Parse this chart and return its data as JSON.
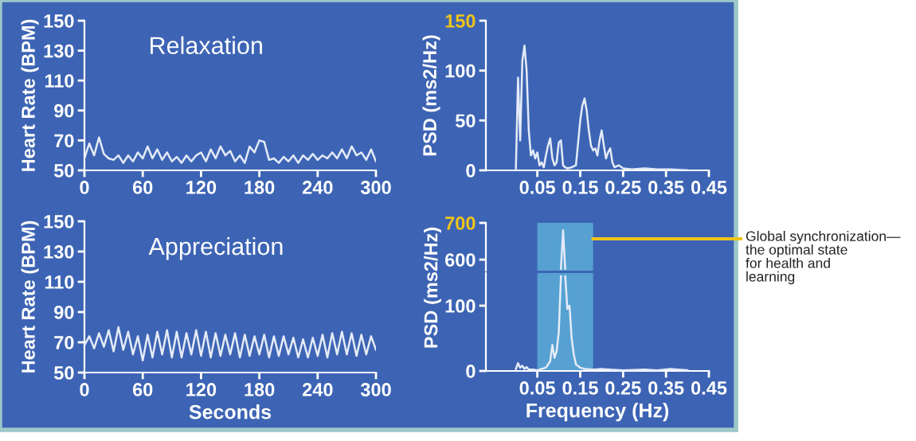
{
  "chart_data": [
    {
      "type": "line",
      "title": "Relaxation",
      "ylabel": "Heart Rate (BPM)",
      "xlim": [
        0,
        300
      ],
      "xticks": [
        0,
        60,
        120,
        180,
        240,
        300
      ],
      "ylim": [
        50,
        150
      ],
      "yticks": [
        50,
        70,
        90,
        110,
        130,
        150
      ],
      "grid": false,
      "legend": false,
      "series": [
        {
          "color": "#e4ebf7",
          "x": [
            0,
            5,
            10,
            15,
            20,
            25,
            30,
            35,
            40,
            45,
            50,
            55,
            60,
            65,
            70,
            75,
            80,
            85,
            90,
            95,
            100,
            105,
            110,
            115,
            120,
            125,
            130,
            135,
            140,
            145,
            150,
            155,
            160,
            165,
            170,
            175,
            180,
            185,
            190,
            195,
            200,
            205,
            210,
            215,
            220,
            225,
            230,
            235,
            240,
            245,
            250,
            255,
            260,
            265,
            270,
            275,
            280,
            285,
            290,
            295,
            300
          ],
          "values": [
            58,
            68,
            60,
            72,
            61,
            58,
            57,
            60,
            55,
            60,
            56,
            62,
            58,
            66,
            58,
            64,
            57,
            62,
            56,
            59,
            55,
            60,
            56,
            60,
            62,
            56,
            64,
            58,
            66,
            60,
            63,
            56,
            60,
            55,
            66,
            62,
            70,
            69,
            57,
            58,
            55,
            59,
            56,
            60,
            55,
            60,
            57,
            61,
            57,
            60,
            58,
            62,
            58,
            64,
            58,
            66,
            60,
            62,
            57,
            64,
            56
          ]
        }
      ]
    },
    {
      "type": "line",
      "title": "Appreciation",
      "ylabel": "Heart Rate (BPM)",
      "xlabel": "Seconds",
      "xlim": [
        0,
        300
      ],
      "xticks": [
        0,
        60,
        120,
        180,
        240,
        300
      ],
      "ylim": [
        50,
        150
      ],
      "yticks": [
        50,
        70,
        90,
        110,
        130,
        150
      ],
      "grid": false,
      "legend": false,
      "series": [
        {
          "color": "#e4ebf7",
          "x": [
            0,
            5,
            10,
            15,
            20,
            25,
            30,
            35,
            40,
            45,
            50,
            55,
            60,
            65,
            70,
            75,
            80,
            85,
            90,
            95,
            100,
            105,
            110,
            115,
            120,
            125,
            130,
            135,
            140,
            145,
            150,
            155,
            160,
            165,
            170,
            175,
            180,
            185,
            190,
            195,
            200,
            205,
            210,
            215,
            220,
            225,
            230,
            235,
            240,
            245,
            250,
            255,
            260,
            265,
            270,
            275,
            280,
            285,
            290,
            295,
            300
          ],
          "values": [
            68,
            74,
            66,
            76,
            67,
            78,
            64,
            80,
            65,
            77,
            62,
            74,
            58,
            75,
            60,
            77,
            62,
            78,
            60,
            77,
            60,
            76,
            62,
            78,
            61,
            77,
            60,
            76,
            61,
            75,
            62,
            76,
            60,
            75,
            61,
            74,
            62,
            75,
            60,
            74,
            61,
            74,
            62,
            73,
            60,
            72,
            60,
            73,
            61,
            75,
            60,
            76,
            62,
            77,
            62,
            76,
            61,
            75,
            62,
            74,
            65
          ]
        }
      ]
    },
    {
      "type": "line",
      "ylabel": "PSD (ms2/Hz)",
      "xlim": [
        -0.07,
        0.45
      ],
      "xticks": [
        0.05,
        0.15,
        0.25,
        0.35,
        0.45
      ],
      "ylim": [
        0,
        150
      ],
      "yticks": [
        0,
        50,
        100,
        150
      ],
      "grid": false,
      "legend": false,
      "series": [
        {
          "color": "#e4ebf7",
          "x": [
            0,
            0.005,
            0.01,
            0.015,
            0.02,
            0.025,
            0.03,
            0.035,
            0.04,
            0.045,
            0.05,
            0.055,
            0.06,
            0.065,
            0.07,
            0.075,
            0.08,
            0.085,
            0.09,
            0.095,
            0.1,
            0.105,
            0.11,
            0.115,
            0.12,
            0.13,
            0.14,
            0.15,
            0.155,
            0.16,
            0.165,
            0.17,
            0.175,
            0.18,
            0.185,
            0.19,
            0.195,
            0.2,
            0.205,
            0.21,
            0.215,
            0.22,
            0.225,
            0.23,
            0.24,
            0.25,
            0.27,
            0.3,
            0.33,
            0.36,
            0.4
          ],
          "values": [
            2,
            93,
            30,
            110,
            125,
            100,
            40,
            15,
            20,
            12,
            18,
            5,
            8,
            3,
            15,
            25,
            32,
            12,
            5,
            8,
            28,
            30,
            5,
            3,
            2,
            3,
            5,
            50,
            65,
            72,
            60,
            40,
            25,
            20,
            22,
            15,
            30,
            40,
            25,
            12,
            18,
            22,
            8,
            3,
            5,
            2,
            1,
            2,
            1,
            1,
            0
          ]
        }
      ]
    },
    {
      "type": "line",
      "tick_labels": "y",
      "xlim": [
        -0.07,
        0.45
      ],
      "ylim": [
        570,
        700
      ],
      "yticks": [
        600,
        700
      ],
      "grid": false,
      "legend": false,
      "bands": [
        {
          "axis": "x",
          "from": 0.05,
          "to": 0.18,
          "color": "#5fb6dc"
        }
      ],
      "annotations": [
        "Global synchronization—\nthe optimal state\nfor health and\nlearning"
      ],
      "series": [
        {
          "color": "#e4ebf7",
          "x": [
            0.105,
            0.11,
            0.115
          ],
          "values": [
            575,
            680,
            575
          ]
        }
      ]
    },
    {
      "type": "line",
      "ylabel": "PSD (ms2/Hz)",
      "xlabel": "Frequency (Hz)",
      "xlim": [
        -0.07,
        0.45
      ],
      "xticks": [
        0.05,
        0.15,
        0.25,
        0.35,
        0.45
      ],
      "ylim": [
        0,
        150
      ],
      "yticks": [
        0,
        100
      ],
      "grid": false,
      "legend": false,
      "bands": [
        {
          "axis": "x",
          "from": 0.05,
          "to": 0.18,
          "color": "#5fb6dc"
        }
      ],
      "series": [
        {
          "color": "#e4ebf7",
          "x": [
            0,
            0.005,
            0.01,
            0.015,
            0.02,
            0.025,
            0.03,
            0.04,
            0.05,
            0.06,
            0.07,
            0.08,
            0.085,
            0.09,
            0.095,
            0.1,
            0.105,
            0.11,
            0.115,
            0.12,
            0.125,
            0.13,
            0.135,
            0.14,
            0.15,
            0.16,
            0.18,
            0.2,
            0.22,
            0.25,
            0.3,
            0.33,
            0.36,
            0.4
          ],
          "values": [
            3,
            12,
            5,
            8,
            3,
            6,
            2,
            2,
            1,
            3,
            5,
            15,
            40,
            20,
            30,
            60,
            145,
            null,
            145,
            95,
            100,
            50,
            25,
            10,
            5,
            3,
            2,
            3,
            2,
            1,
            2,
            1,
            3,
            1
          ]
        }
      ]
    }
  ]
}
